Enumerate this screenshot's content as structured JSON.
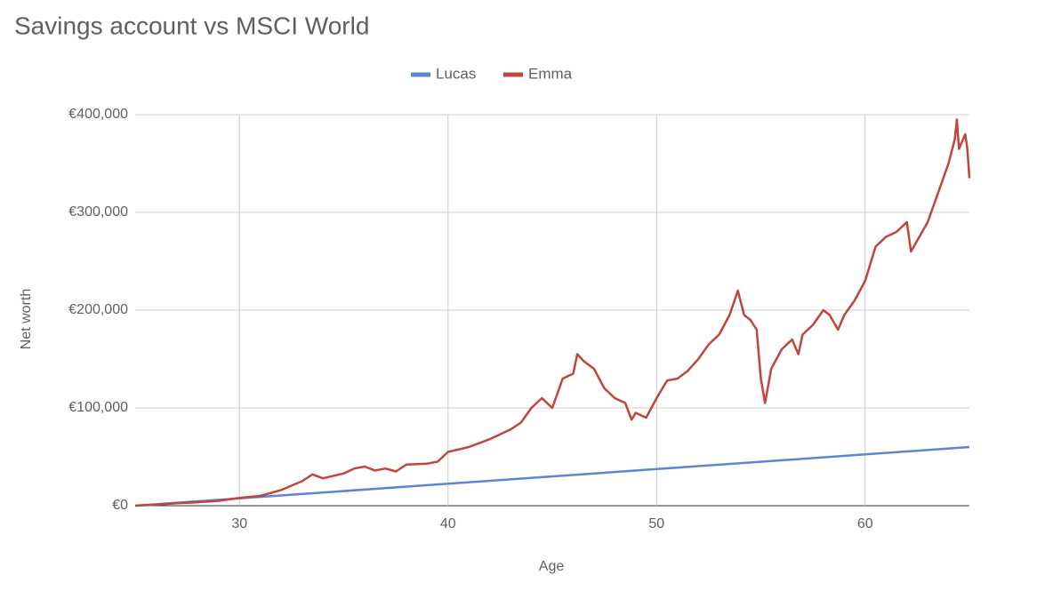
{
  "chart_data": {
    "type": "line",
    "title": "Savings account vs MSCI World",
    "xlabel": "Age",
    "ylabel": "Net worth",
    "xlim": [
      25,
      65
    ],
    "xticks": [
      30,
      40,
      50,
      60
    ],
    "ylim": [
      0,
      400000
    ],
    "yticks": [
      {
        "value": 0,
        "label": "€0"
      },
      {
        "value": 100000,
        "label": "€100,000"
      },
      {
        "value": 200000,
        "label": "€200,000"
      },
      {
        "value": 300000,
        "label": "€300,000"
      },
      {
        "value": 400000,
        "label": "€400,000"
      }
    ],
    "grid": true,
    "legend": "top",
    "series": [
      {
        "name": "Lucas",
        "color": "#5b86d6",
        "x": [
          25,
          30,
          40,
          50,
          60,
          65
        ],
        "values": [
          0,
          7500,
          22500,
          37500,
          52500,
          60000
        ]
      },
      {
        "name": "Emma",
        "color": "#c0453a",
        "x": [
          25,
          26,
          27,
          28,
          29,
          30,
          31,
          32,
          33,
          33.5,
          34,
          35,
          35.5,
          36,
          36.5,
          37,
          37.5,
          38,
          39,
          39.5,
          40,
          41,
          42,
          43,
          43.5,
          44,
          44.5,
          45,
          45.5,
          46,
          46.2,
          46.5,
          47,
          47.5,
          48,
          48.5,
          48.8,
          49,
          49.5,
          50,
          50.5,
          51,
          51.5,
          52,
          52.5,
          53,
          53.5,
          53.9,
          54.2,
          54.5,
          54.8,
          55,
          55.2,
          55.5,
          56,
          56.5,
          56.8,
          57,
          57.5,
          58,
          58.3,
          58.7,
          59,
          59.5,
          60,
          60.5,
          61,
          61.5,
          62,
          62.2,
          62.6,
          63,
          63.5,
          64,
          64.3,
          64.4,
          64.5,
          64.8,
          64.9,
          65
        ],
        "values": [
          0,
          1000,
          2500,
          3500,
          5000,
          8000,
          10000,
          16000,
          25000,
          32000,
          28000,
          33000,
          38000,
          40000,
          36000,
          38000,
          35000,
          42000,
          43000,
          45000,
          55000,
          60000,
          68000,
          78000,
          85000,
          100000,
          110000,
          100000,
          130000,
          135000,
          155000,
          148000,
          140000,
          120000,
          110000,
          105000,
          88000,
          95000,
          90000,
          110000,
          128000,
          130000,
          138000,
          150000,
          165000,
          175000,
          195000,
          220000,
          195000,
          190000,
          180000,
          130000,
          105000,
          140000,
          160000,
          170000,
          155000,
          175000,
          185000,
          200000,
          195000,
          180000,
          195000,
          210000,
          230000,
          265000,
          275000,
          280000,
          290000,
          260000,
          275000,
          290000,
          320000,
          350000,
          375000,
          395000,
          365000,
          380000,
          365000,
          335000
        ]
      }
    ]
  }
}
